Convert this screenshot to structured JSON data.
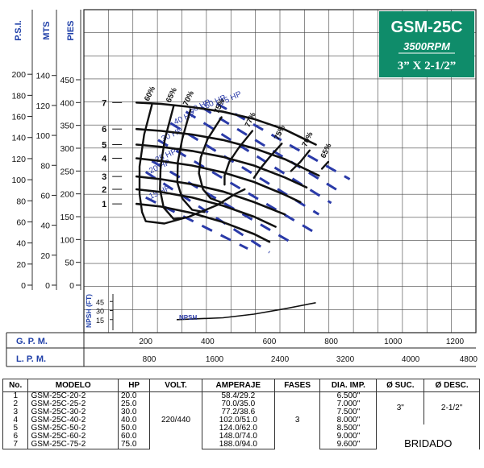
{
  "title_box": {
    "model": "GSM-25C",
    "rpm": "3500RPM",
    "size": "3” X 2-1/2”"
  },
  "chart_data": {
    "type": "line",
    "x_axis_labels": {
      "gpm": "G. P. M.",
      "lpm": "L. P. M."
    },
    "y_axis_labels": {
      "psi": "P.S.I.",
      "mts": "MTS",
      "pies": "PIES"
    },
    "gpm_ticks": [
      200,
      400,
      600,
      800,
      1000,
      1200
    ],
    "lpm_ticks": [
      800,
      1600,
      2400,
      3200,
      4000,
      4800
    ],
    "psi_ticks": [
      0,
      20,
      40,
      60,
      80,
      100,
      120,
      140,
      160,
      180,
      200
    ],
    "mts_ticks": [
      0,
      20,
      40,
      60,
      80,
      100,
      120,
      140
    ],
    "pies_ticks": [
      0,
      50,
      100,
      150,
      200,
      250,
      300,
      350,
      400,
      450
    ],
    "xlim_gpm": [
      0,
      1250
    ],
    "ylim_pies": [
      0,
      470
    ],
    "head_curves": [
      {
        "label": "1",
        "points": [
          [
            170,
            178
          ],
          [
            250,
            172
          ],
          [
            350,
            158
          ],
          [
            450,
            138
          ],
          [
            550,
            112
          ],
          [
            600,
            95
          ]
        ]
      },
      {
        "label": "2",
        "points": [
          [
            170,
            210
          ],
          [
            250,
            204
          ],
          [
            350,
            192
          ],
          [
            450,
            174
          ],
          [
            550,
            150
          ],
          [
            620,
            128
          ]
        ]
      },
      {
        "label": "3",
        "points": [
          [
            170,
            238
          ],
          [
            250,
            232
          ],
          [
            350,
            221
          ],
          [
            450,
            205
          ],
          [
            550,
            182
          ],
          [
            650,
            155
          ]
        ]
      },
      {
        "label": "4",
        "points": [
          [
            170,
            278
          ],
          [
            250,
            272
          ],
          [
            350,
            262
          ],
          [
            450,
            247
          ],
          [
            550,
            226
          ],
          [
            650,
            198
          ],
          [
            700,
            182
          ]
        ]
      },
      {
        "label": "5",
        "points": [
          [
            170,
            308
          ],
          [
            250,
            303
          ],
          [
            350,
            294
          ],
          [
            450,
            281
          ],
          [
            550,
            262
          ],
          [
            650,
            236
          ],
          [
            720,
            214
          ]
        ]
      },
      {
        "label": "6",
        "points": [
          [
            170,
            342
          ],
          [
            250,
            338
          ],
          [
            350,
            330
          ],
          [
            450,
            318
          ],
          [
            550,
            300
          ],
          [
            650,
            276
          ],
          [
            760,
            240
          ]
        ]
      },
      {
        "label": "7",
        "points": [
          [
            170,
            400
          ],
          [
            250,
            397
          ],
          [
            350,
            390
          ],
          [
            450,
            380
          ],
          [
            550,
            364
          ],
          [
            650,
            341
          ],
          [
            750,
            308
          ]
        ]
      }
    ],
    "efficiency_curves": [
      {
        "label": "60%",
        "points": [
          [
            220,
            395
          ],
          [
            195,
            330
          ],
          [
            180,
            260
          ],
          [
            180,
            200
          ],
          [
            188,
            160
          ],
          [
            200,
            140
          ],
          [
            260,
            135
          ],
          [
            340,
            150
          ],
          [
            430,
            175
          ],
          [
            490,
            200
          ],
          [
            520,
            210
          ]
        ]
      },
      {
        "label": "65%",
        "points": [
          [
            290,
            392
          ],
          [
            262,
            320
          ],
          [
            248,
            260
          ],
          [
            246,
            210
          ],
          [
            258,
            170
          ],
          [
            290,
            145
          ],
          [
            330,
            148
          ]
        ]
      },
      {
        "label": "70%",
        "points": [
          [
            345,
            385
          ],
          [
            318,
            320
          ],
          [
            304,
            270
          ],
          [
            302,
            225
          ],
          [
            318,
            190
          ],
          [
            350,
            165
          ],
          [
            390,
            160
          ]
        ]
      },
      {
        "label": "75%",
        "points": [
          [
            445,
            368
          ],
          [
            400,
            320
          ],
          [
            378,
            280
          ],
          [
            372,
            245
          ],
          [
            385,
            210
          ],
          [
            410,
            190
          ],
          [
            450,
            180
          ]
        ]
      },
      {
        "label": "77%",
        "points": [
          [
            545,
            338
          ],
          [
            500,
            300
          ],
          [
            470,
            270
          ],
          [
            455,
            240
          ],
          [
            455,
            220
          ]
        ]
      },
      {
        "label": "75%",
        "points": [
          [
            640,
            310
          ],
          [
            600,
            280
          ],
          [
            570,
            255
          ],
          [
            550,
            235
          ]
        ]
      },
      {
        "label": "70%",
        "points": [
          [
            730,
            295
          ],
          [
            700,
            270
          ],
          [
            670,
            250
          ]
        ]
      },
      {
        "label": "65%",
        "points": [
          [
            790,
            270
          ],
          [
            770,
            255
          ]
        ]
      }
    ],
    "hp_lines": [
      {
        "label": "15 HP",
        "points": [
          [
            200,
            192
          ],
          [
            530,
            80
          ]
        ]
      },
      {
        "label": "20 HP",
        "points": [
          [
            200,
            248
          ],
          [
            600,
            72
          ]
        ]
      },
      {
        "label": "25 HP",
        "points": [
          [
            220,
            272
          ],
          [
            680,
            90
          ]
        ]
      },
      {
        "label": "30 HP",
        "points": [
          [
            240,
            318
          ],
          [
            740,
            118
          ]
        ]
      },
      {
        "label": "40 HP",
        "points": [
          [
            280,
            355
          ],
          [
            760,
            155
          ]
        ]
      },
      {
        "label": "50 HP",
        "points": [
          [
            330,
            380
          ],
          [
            800,
            180
          ]
        ]
      },
      {
        "label": "60 HP",
        "points": [
          [
            380,
            390
          ],
          [
            820,
            208
          ]
        ]
      },
      {
        "label": "75 HP",
        "points": [
          [
            430,
            398
          ],
          [
            860,
            232
          ]
        ]
      }
    ],
    "npsh": {
      "label": "NPSH",
      "axis_label": "NPSH (FT)",
      "ticks": [
        15,
        30,
        45
      ],
      "points": [
        [
          300,
          15
        ],
        [
          450,
          18
        ],
        [
          550,
          24
        ],
        [
          650,
          33
        ],
        [
          750,
          43
        ]
      ]
    },
    "grid": true
  },
  "table": {
    "headers": [
      "No.",
      "MODELO",
      "HP",
      "VOLT.",
      "AMPERAJE",
      "FASES",
      "DIA. IMP.",
      "Ø SUC.",
      "Ø DESC."
    ],
    "rows": [
      {
        "no": "1",
        "modelo": "GSM-25C-20-2",
        "hp": "20.0",
        "amp": "58.4/29.2",
        "dia": "6.500\""
      },
      {
        "no": "2",
        "modelo": "GSM-25C-25-2",
        "hp": "25.0",
        "amp": "70.0/35.0",
        "dia": "7.000\""
      },
      {
        "no": "3",
        "modelo": "GSM-25C-30-2",
        "hp": "30.0",
        "amp": "77.2/38.6",
        "dia": "7.500\""
      },
      {
        "no": "4",
        "modelo": "GSM-25C-40-2",
        "hp": "40.0",
        "amp": "102.0/51.0",
        "dia": "8.000\""
      },
      {
        "no": "5",
        "modelo": "GSM-25C-50-2",
        "hp": "50.0",
        "amp": "124.0/62.0",
        "dia": "8.500\""
      },
      {
        "no": "6",
        "modelo": "GSM-25C-60-2",
        "hp": "60.0",
        "amp": "148.0/74.0",
        "dia": "9.000\""
      },
      {
        "no": "7",
        "modelo": "GSM-25C-75-2",
        "hp": "75.0",
        "amp": "188.0/94.0",
        "dia": "9.600\""
      }
    ],
    "volt": "220/440",
    "fases": "3",
    "suc": "3\"",
    "desc": "2-1/2\"",
    "note": "BRIDADO"
  }
}
